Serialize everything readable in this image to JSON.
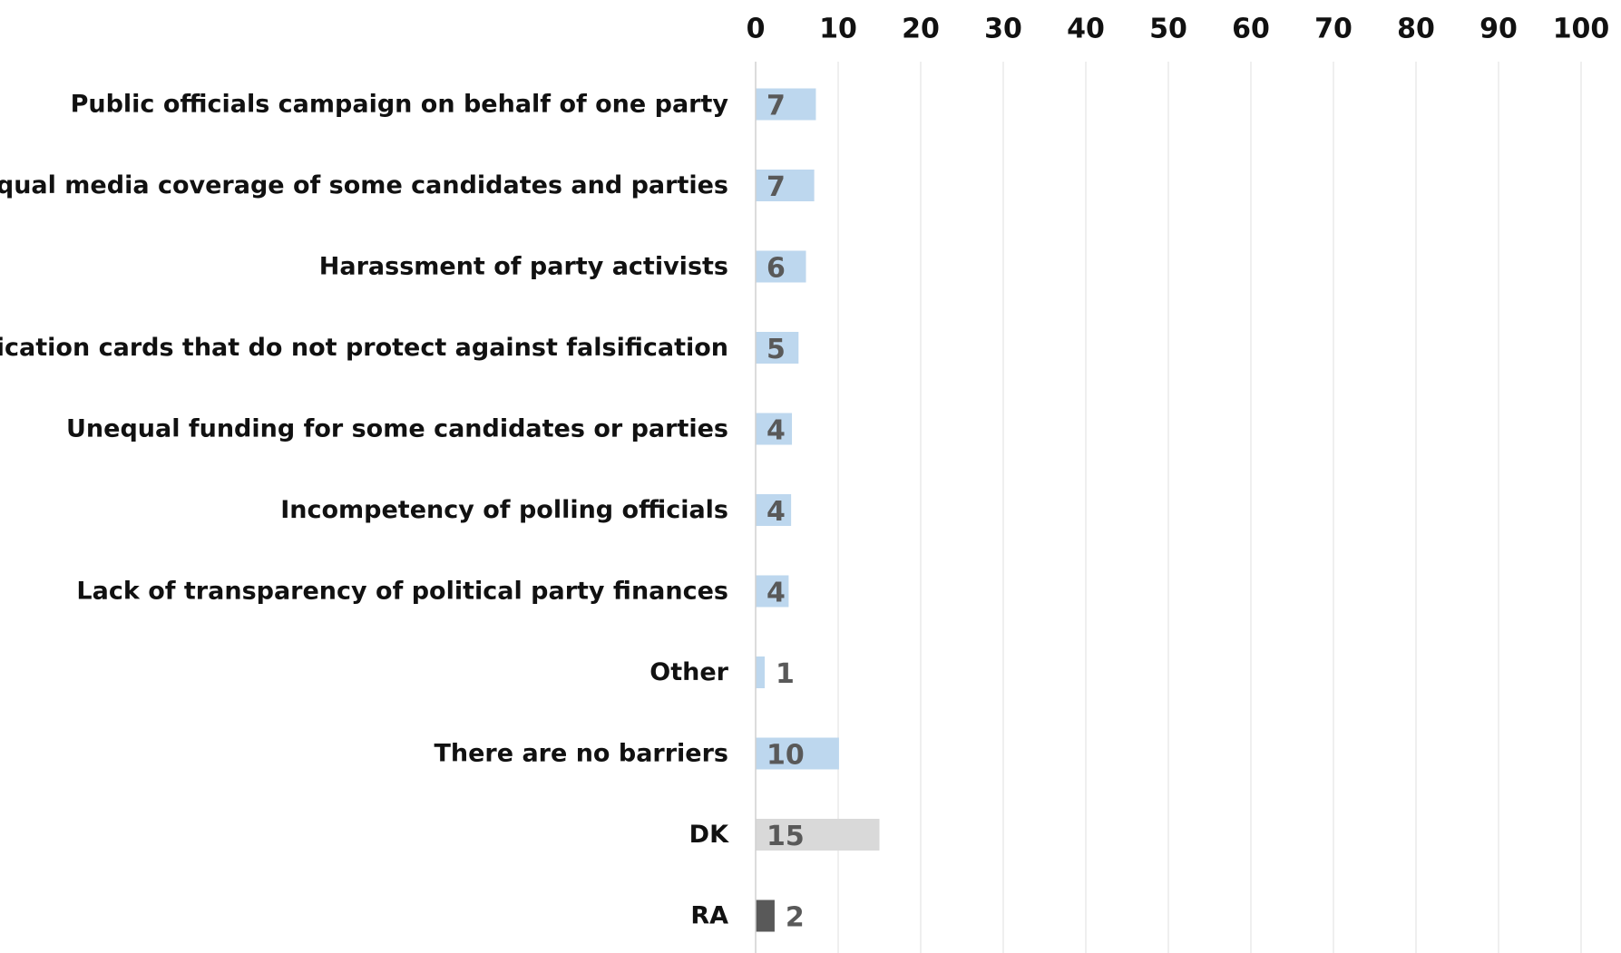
{
  "chart_data": {
    "type": "bar",
    "orientation": "horizontal",
    "title": "",
    "xlabel": "",
    "ylabel": "",
    "xlim": [
      0,
      100
    ],
    "xticks": [
      0,
      10,
      20,
      30,
      40,
      50,
      60,
      70,
      80,
      90,
      100
    ],
    "x_axis_position": "top",
    "grid": true,
    "legend": "none",
    "categories": [
      "Public officials campaign on behalf of one party",
      "Unequal media coverage of some candidates and parties",
      "Harassment of party activists",
      "Identification cards that do not protect against falsification",
      "Unequal funding for some candidates or parties",
      "Incompetency of polling officials",
      "Lack of transparency of political party finances",
      "Other",
      "There are no barriers",
      "DK",
      "RA"
    ],
    "values": [
      7.3,
      7.1,
      6.1,
      5.2,
      4.4,
      4.3,
      4.0,
      1.1,
      10.1,
      15.0,
      2.3
    ],
    "data_labels": [
      "7",
      "7",
      "6",
      "5",
      "4",
      "4",
      "4",
      "1",
      "10",
      "15",
      "2"
    ],
    "bar_colors": [
      "#bdd7ee",
      "#bdd7ee",
      "#bdd7ee",
      "#bdd7ee",
      "#bdd7ee",
      "#bdd7ee",
      "#bdd7ee",
      "#bdd7ee",
      "#bdd7ee",
      "#d9d9d9",
      "#595959"
    ]
  }
}
